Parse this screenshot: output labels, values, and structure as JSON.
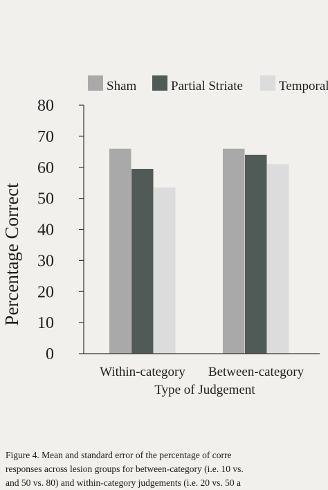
{
  "chart_data": {
    "type": "bar",
    "categories": [
      "Within-category",
      "Between-category"
    ],
    "series": [
      {
        "name": "Sham",
        "values": [
          66,
          66
        ],
        "color": "#a9a9a9"
      },
      {
        "name": "Partial Striate",
        "values": [
          59.5,
          64
        ],
        "color": "#505a56"
      },
      {
        "name": "Temporal",
        "values": [
          53.5,
          61
        ],
        "color": "#dcdcdc"
      }
    ],
    "xlabel": "Type of Judgement",
    "ylabel": "Percentage Correct",
    "ylim": [
      0,
      80
    ],
    "yticks": [
      0,
      10,
      20,
      30,
      40,
      50,
      60,
      70,
      80
    ],
    "grid": false,
    "legend_position": "top"
  },
  "caption": {
    "lines": [
      "Figure 4.   Mean and standard error of the percentage of corre",
      "responses across lesion groups for between-category (i.e. 10 vs.",
      "and 50 vs. 80) and within-category judgements (i.e. 20 vs. 50 a"
    ]
  }
}
